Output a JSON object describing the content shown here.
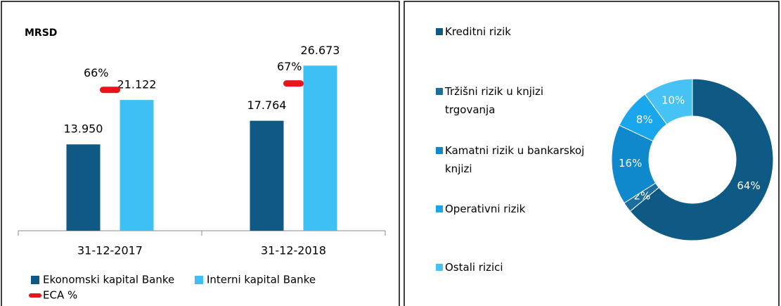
{
  "chart_data": [
    {
      "type": "bar",
      "title": "MRSD",
      "categories": [
        "31-12-2017",
        "31-12-2018"
      ],
      "series": [
        {
          "name": "Ekonomski kapital Banke",
          "color": "#0e5a85",
          "values": [
            13950,
            17764
          ],
          "value_labels": [
            "13.950",
            "17.764"
          ]
        },
        {
          "name": "Interni kapital Banke",
          "color": "#3fc0f5",
          "values": [
            21122,
            26673
          ],
          "value_labels": [
            "21.122",
            "26.673"
          ]
        },
        {
          "name": "ECA %",
          "color": "#e8141b",
          "axis": "y2",
          "marker": "dash",
          "values": [
            66,
            67
          ],
          "value_labels": [
            "66%",
            "67%"
          ]
        }
      ],
      "ylim": [
        0,
        30000
      ],
      "y2lim": [
        44,
        73
      ]
    },
    {
      "type": "donut",
      "categories": [
        "Kreditni rizik",
        "Tržišni rizik u knjizi trgovanja",
        "Kamatni rizik u bankarskoj knjizi",
        "Operativni rizik",
        "Ostali rizici"
      ],
      "values": [
        64,
        2,
        16,
        8,
        10
      ],
      "value_labels": [
        "64%",
        "2%",
        "16%",
        "8%",
        "10%"
      ],
      "colors": [
        "#0e5a85",
        "#1b6e9e",
        "#0f89cc",
        "#1aa6ec",
        "#46c2f5"
      ]
    }
  ]
}
